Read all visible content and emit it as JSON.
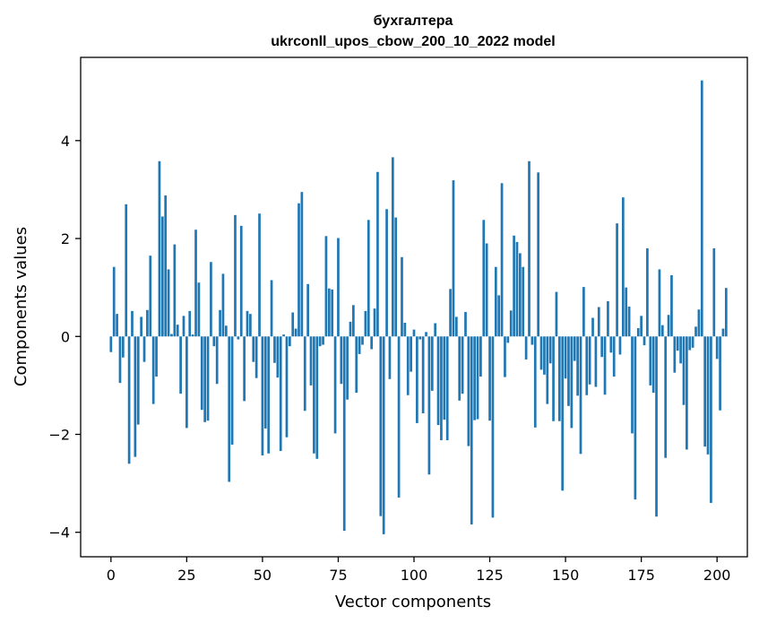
{
  "chart_data": {
    "type": "bar",
    "title_line1": "бухгалтера",
    "title_line2": "ukrconll_upos_cbow_200_10_2022 model",
    "xlabel": "Vector components",
    "ylabel": "Components values",
    "xlim": [
      -10,
      210
    ],
    "ylim": [
      -4.5,
      5.7
    ],
    "xticks": [
      0,
      25,
      50,
      75,
      100,
      125,
      150,
      175,
      200
    ],
    "xtick_labels": [
      "0",
      "25",
      "50",
      "75",
      "100",
      "125",
      "150",
      "175",
      "200"
    ],
    "yticks": [
      -4,
      -2,
      0,
      2,
      4
    ],
    "ytick_labels": [
      "−4",
      "−2",
      "0",
      "2",
      "4"
    ],
    "bar_color": "#1f77b4",
    "grid": false,
    "values": [
      -0.32,
      1.42,
      0.46,
      -0.95,
      -0.43,
      2.7,
      -2.6,
      0.52,
      -2.46,
      -1.8,
      0.4,
      -0.52,
      0.54,
      1.65,
      -1.38,
      -0.82,
      3.58,
      2.45,
      2.88,
      1.37,
      0.05,
      1.88,
      0.24,
      -1.17,
      0.42,
      -1.87,
      0.52,
      0.04,
      2.18,
      1.1,
      -1.5,
      -1.75,
      -1.72,
      1.52,
      -0.2,
      -0.97,
      0.54,
      1.28,
      0.22,
      -2.97,
      -2.21,
      2.48,
      -0.06,
      2.26,
      -1.32,
      0.52,
      0.46,
      -0.52,
      -0.85,
      2.51,
      -2.43,
      -1.88,
      -2.39,
      1.15,
      -0.54,
      -0.84,
      -2.34,
      0.04,
      -2.06,
      -0.2,
      0.49,
      0.16,
      2.72,
      2.95,
      -1.52,
      1.07,
      -1.0,
      -2.39,
      -2.5,
      -0.2,
      -0.17,
      2.05,
      0.98,
      0.96,
      -1.98,
      2.01,
      -0.97,
      -3.97,
      -1.29,
      0.3,
      0.64,
      -1.15,
      -0.36,
      -0.17,
      0.52,
      2.38,
      -0.26,
      0.57,
      3.36,
      -3.67,
      -4.04,
      2.6,
      -0.87,
      3.66,
      2.43,
      -3.29,
      1.62,
      0.28,
      -1.2,
      -0.72,
      0.14,
      -1.77,
      -0.06,
      -1.57,
      0.09,
      -2.82,
      -1.11,
      0.27,
      -1.81,
      -2.12,
      -1.7,
      -2.12,
      0.97,
      3.19,
      0.4,
      -1.31,
      -1.17,
      0.5,
      -2.24,
      -3.84,
      -1.71,
      -1.69,
      -0.82,
      2.38,
      1.9,
      -1.72,
      -3.7,
      1.42,
      0.84,
      3.13,
      -0.83,
      -0.13,
      0.53,
      2.06,
      1.93,
      1.7,
      1.42,
      -0.47,
      3.58,
      -0.17,
      -1.86,
      3.35,
      -0.68,
      -0.78,
      -1.38,
      -0.55,
      -1.73,
      0.91,
      -1.73,
      -3.15,
      -0.86,
      -1.42,
      -1.87,
      -0.5,
      -1.21,
      -2.4,
      1.01,
      -1.2,
      -0.98,
      0.38,
      -1.03,
      0.6,
      -0.42,
      -1.19,
      0.72,
      -0.33,
      -0.82,
      2.31,
      -0.37,
      2.84,
      1.0,
      0.61,
      -1.98,
      -3.33,
      0.17,
      0.42,
      -0.18,
      1.8,
      -1.0,
      -1.15,
      -3.68,
      1.37,
      0.23,
      -2.48,
      0.44,
      1.25,
      -0.74,
      -0.29,
      -0.55,
      -1.4,
      -2.31,
      -0.28,
      -0.23,
      0.2,
      0.55,
      5.23,
      -2.25,
      -2.41,
      -3.4,
      1.8,
      -0.46,
      -1.51,
      0.16,
      0.99
    ]
  }
}
